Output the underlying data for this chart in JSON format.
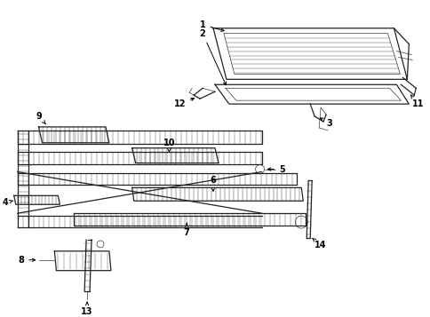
{
  "bg_color": "#ffffff",
  "line_color": "#222222",
  "label_color": "#000000",
  "figsize": [
    4.85,
    3.57
  ],
  "dpi": 100,
  "font_size": 7,
  "lw_main": 0.9,
  "lw_thin": 0.45,
  "lw_hatch": 0.3
}
